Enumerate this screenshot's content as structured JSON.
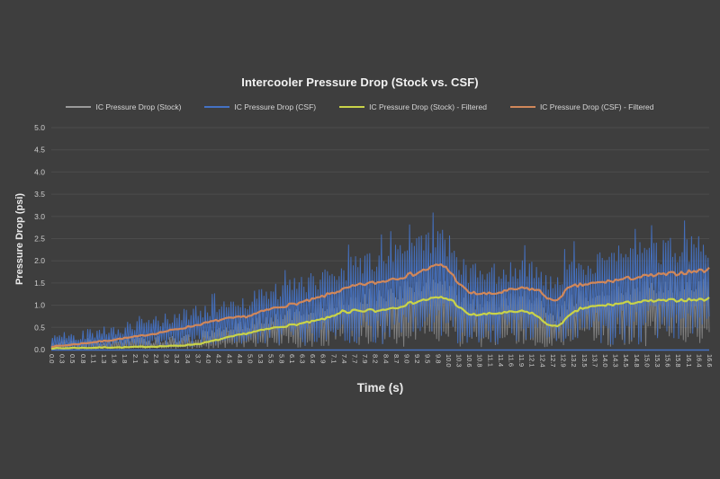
{
  "page": {
    "background": "#3e3e3e"
  },
  "chart_data": {
    "type": "line",
    "title": "Intercooler Pressure Drop (Stock vs. CSF)",
    "xlabel": "Time (s)",
    "ylabel": "Pressure Drop (psi)",
    "xlim": [
      0,
      16.6
    ],
    "ylim": [
      0,
      5
    ],
    "grid": "horizontal",
    "legend_position": "top",
    "colors": {
      "background": "#3e3e3e",
      "grid": "#4c4c4c",
      "axis_line": "#4472c4",
      "tick_label": "#cfcfcf",
      "title": "#f2f2f2"
    },
    "y_ticks": [
      "0.0",
      "0.5",
      "1.0",
      "1.5",
      "2.0",
      "2.5",
      "3.0",
      "3.5",
      "4.0",
      "4.5",
      "5.0"
    ],
    "x_ticks": [
      "0.0",
      "0.3",
      "0.5",
      "0.8",
      "1.1",
      "1.3",
      "1.6",
      "1.8",
      "2.1",
      "2.4",
      "2.6",
      "2.9",
      "3.2",
      "3.4",
      "3.7",
      "4.0",
      "4.2",
      "4.5",
      "4.8",
      "5.0",
      "5.3",
      "5.5",
      "5.8",
      "6.1",
      "6.3",
      "6.6",
      "6.9",
      "7.1",
      "7.4",
      "7.7",
      "7.9",
      "8.2",
      "8.4",
      "8.7",
      "9.0",
      "9.2",
      "9.5",
      "9.8",
      "10.0",
      "10.3",
      "10.6",
      "10.8",
      "11.1",
      "11.4",
      "11.6",
      "11.9",
      "12.1",
      "12.4",
      "12.7",
      "12.9",
      "13.2",
      "13.5",
      "13.7",
      "14.0",
      "14.3",
      "14.5",
      "14.8",
      "15.0",
      "15.3",
      "15.6",
      "15.8",
      "16.1",
      "16.4",
      "16.6"
    ],
    "series": [
      {
        "id": "stock_raw",
        "name": "IC Pressure Drop (Stock)",
        "color": "#9a9a9a",
        "style": "raw",
        "base": "stock_filtered",
        "seed": 13,
        "floor": 0.01,
        "amp_base": 0.22,
        "amp_scale": 0.35,
        "opacity": 0.72
      },
      {
        "id": "csf_raw",
        "name": "IC Pressure Drop (CSF)",
        "color": "#4472c4",
        "style": "raw",
        "base": "csf_filtered",
        "seed": 42,
        "floor": 0.03,
        "amp_base": 0.3,
        "amp_scale": 0.33,
        "opacity": 0.92
      },
      {
        "id": "stock_filtered",
        "name": "IC Pressure Drop (Stock) - Filtered",
        "color": "#c9d348",
        "style": "filtered",
        "opacity": 1,
        "points": [
          [
            0,
            0.03
          ],
          [
            0.3,
            0.03
          ],
          [
            0.6,
            0.04
          ],
          [
            1.0,
            0.04
          ],
          [
            1.4,
            0.05
          ],
          [
            1.8,
            0.05
          ],
          [
            2.2,
            0.06
          ],
          [
            2.6,
            0.07
          ],
          [
            3.0,
            0.08
          ],
          [
            3.4,
            0.1
          ],
          [
            3.8,
            0.14
          ],
          [
            4.2,
            0.22
          ],
          [
            4.6,
            0.3
          ],
          [
            5.0,
            0.38
          ],
          [
            5.4,
            0.45
          ],
          [
            5.8,
            0.52
          ],
          [
            6.2,
            0.57
          ],
          [
            6.6,
            0.63
          ],
          [
            7.0,
            0.72
          ],
          [
            7.2,
            0.8
          ],
          [
            7.35,
            0.87
          ],
          [
            7.5,
            0.8
          ],
          [
            7.65,
            0.9
          ],
          [
            7.8,
            0.84
          ],
          [
            8.0,
            0.9
          ],
          [
            8.2,
            0.86
          ],
          [
            8.45,
            0.92
          ],
          [
            8.7,
            0.95
          ],
          [
            9.0,
            1.03
          ],
          [
            9.3,
            1.1
          ],
          [
            9.6,
            1.15
          ],
          [
            9.85,
            1.17
          ],
          [
            10.1,
            1.12
          ],
          [
            10.3,
            0.95
          ],
          [
            10.5,
            0.8
          ],
          [
            10.7,
            0.78
          ],
          [
            11.0,
            0.8
          ],
          [
            11.3,
            0.82
          ],
          [
            11.6,
            0.84
          ],
          [
            11.9,
            0.86
          ],
          [
            12.15,
            0.82
          ],
          [
            12.4,
            0.65
          ],
          [
            12.6,
            0.53
          ],
          [
            12.75,
            0.52
          ],
          [
            12.9,
            0.62
          ],
          [
            13.1,
            0.78
          ],
          [
            13.35,
            0.92
          ],
          [
            13.6,
            0.96
          ],
          [
            13.9,
            0.99
          ],
          [
            14.2,
            1.02
          ],
          [
            14.5,
            1.05
          ],
          [
            14.8,
            1.07
          ],
          [
            15.1,
            1.09
          ],
          [
            15.4,
            1.1
          ],
          [
            15.7,
            1.11
          ],
          [
            16.0,
            1.12
          ],
          [
            16.3,
            1.12
          ],
          [
            16.6,
            1.14
          ]
        ]
      },
      {
        "id": "csf_filtered",
        "name": "IC Pressure Drop (CSF) - Filtered",
        "color": "#d0875a",
        "style": "filtered",
        "opacity": 1,
        "points": [
          [
            0,
            0.07
          ],
          [
            0.3,
            0.09
          ],
          [
            0.6,
            0.12
          ],
          [
            1.0,
            0.16
          ],
          [
            1.4,
            0.2
          ],
          [
            1.8,
            0.25
          ],
          [
            2.2,
            0.3
          ],
          [
            2.6,
            0.36
          ],
          [
            3.0,
            0.43
          ],
          [
            3.4,
            0.5
          ],
          [
            3.8,
            0.58
          ],
          [
            4.1,
            0.64
          ],
          [
            4.4,
            0.69
          ],
          [
            4.7,
            0.72
          ],
          [
            5.0,
            0.76
          ],
          [
            5.3,
            0.85
          ],
          [
            5.6,
            0.93
          ],
          [
            5.9,
            0.99
          ],
          [
            6.2,
            1.04
          ],
          [
            6.5,
            1.1
          ],
          [
            6.8,
            1.18
          ],
          [
            7.1,
            1.28
          ],
          [
            7.4,
            1.36
          ],
          [
            7.7,
            1.44
          ],
          [
            8.0,
            1.49
          ],
          [
            8.3,
            1.52
          ],
          [
            8.6,
            1.6
          ],
          [
            8.9,
            1.65
          ],
          [
            9.2,
            1.72
          ],
          [
            9.5,
            1.82
          ],
          [
            9.75,
            1.9
          ],
          [
            9.95,
            1.87
          ],
          [
            10.15,
            1.65
          ],
          [
            10.35,
            1.42
          ],
          [
            10.55,
            1.28
          ],
          [
            10.8,
            1.26
          ],
          [
            11.1,
            1.25
          ],
          [
            11.4,
            1.3
          ],
          [
            11.7,
            1.36
          ],
          [
            12.0,
            1.38
          ],
          [
            12.3,
            1.33
          ],
          [
            12.55,
            1.15
          ],
          [
            12.7,
            1.07
          ],
          [
            12.85,
            1.2
          ],
          [
            13.0,
            1.35
          ],
          [
            13.2,
            1.43
          ],
          [
            13.5,
            1.47
          ],
          [
            13.8,
            1.5
          ],
          [
            14.1,
            1.54
          ],
          [
            14.4,
            1.58
          ],
          [
            14.7,
            1.62
          ],
          [
            15.0,
            1.65
          ],
          [
            15.3,
            1.68
          ],
          [
            15.6,
            1.7
          ],
          [
            15.9,
            1.73
          ],
          [
            16.2,
            1.76
          ],
          [
            16.6,
            1.8
          ]
        ]
      }
    ]
  }
}
